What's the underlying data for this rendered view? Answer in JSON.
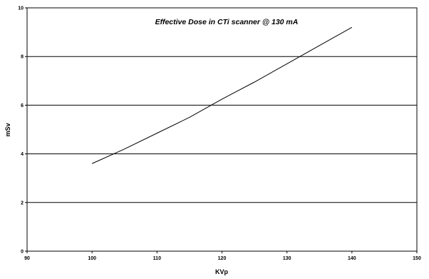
{
  "chart_data": {
    "type": "line",
    "title": "Effective Dose in CTi scanner @ 130 mA",
    "xlabel": "KVp",
    "ylabel": "mSv",
    "xlim": [
      90,
      150
    ],
    "ylim": [
      0,
      10
    ],
    "x_ticks": [
      "90",
      "100",
      "110",
      "120",
      "130",
      "140",
      "150"
    ],
    "y_ticks": [
      "0",
      "2",
      "4",
      "6",
      "8",
      "10"
    ],
    "grid": "horizontal",
    "series": [
      {
        "x": [
          100,
          105,
          110,
          115,
          120,
          125,
          130,
          135,
          140
        ],
        "values": [
          3.6,
          4.2,
          4.85,
          5.5,
          6.25,
          6.95,
          7.7,
          8.45,
          9.2
        ]
      }
    ]
  }
}
